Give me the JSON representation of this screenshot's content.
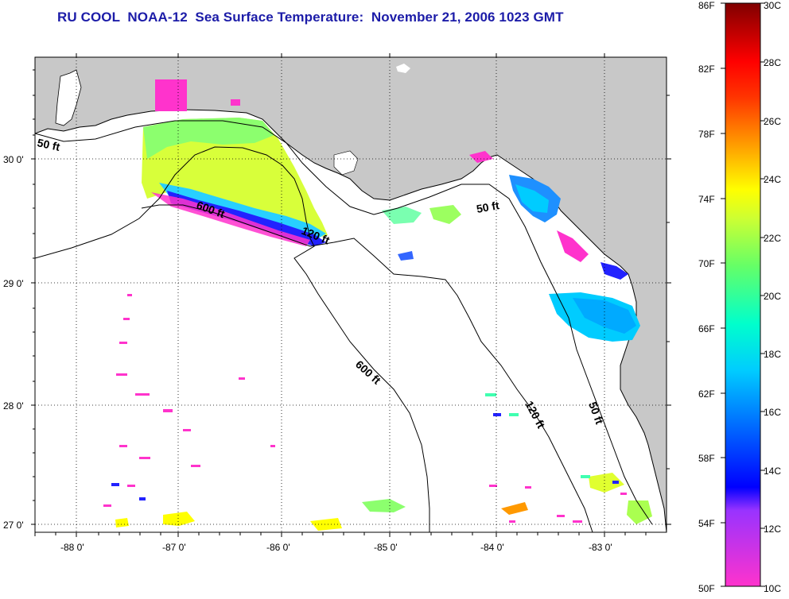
{
  "title": "RU COOL  NOAA-12  Sea Surface Temperature:  November 21, 2006 1023 GMT",
  "axes": {
    "longitude_ticks": [
      "-88 0'",
      "-87 0'",
      "-86 0'",
      "-85 0'",
      "-84 0'",
      "-83 0'"
    ],
    "latitude_ticks": [
      "30 0'",
      "29 0'",
      "28 0'",
      "27 0'"
    ]
  },
  "contours": [
    {
      "label": "50 ft",
      "name": "contour-50ft-west"
    },
    {
      "label": "600 ft",
      "name": "contour-600ft-north"
    },
    {
      "label": "120 ft",
      "name": "contour-120ft-north"
    },
    {
      "label": "50 ft",
      "name": "contour-50ft-bigbend"
    },
    {
      "label": "600 ft",
      "name": "contour-600ft-mid"
    },
    {
      "label": "120 ft",
      "name": "contour-120ft-south"
    },
    {
      "label": "50 ft",
      "name": "contour-50ft-south"
    }
  ],
  "colorbar": {
    "fahrenheit": [
      "86F",
      "82F",
      "78F",
      "74F",
      "70F",
      "66F",
      "62F",
      "58F",
      "54F",
      "50F"
    ],
    "celsius": [
      "30C",
      "28C",
      "26C",
      "24C",
      "22C",
      "20C",
      "18C",
      "16C",
      "14C",
      "12C",
      "10C"
    ],
    "colors": [
      "#ff00ff",
      "#8a2be2",
      "#0000ff",
      "#1e90ff",
      "#00ffff",
      "#3cffa0",
      "#c8ff3c",
      "#ffff00",
      "#ffa500",
      "#ff4500",
      "#ff0000",
      "#800000"
    ]
  },
  "colors": {
    "title": "#1c1ca8",
    "land": "#c8c8c8",
    "sea": "#ffffff"
  }
}
